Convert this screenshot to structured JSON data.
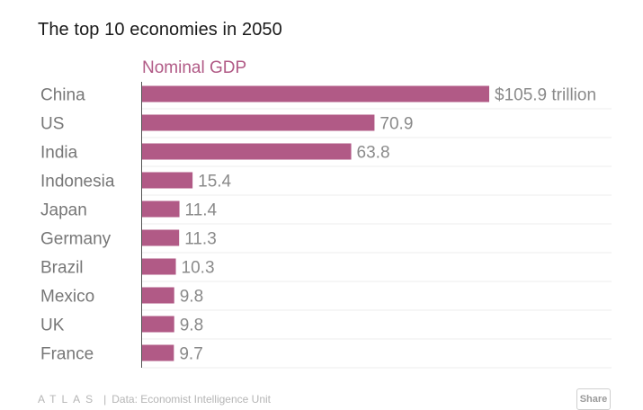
{
  "colors": {
    "bar": "#b15a86",
    "subtitle": "#b15a86",
    "grid": "#ececec",
    "axis": "#555555"
  },
  "chart_data": {
    "type": "bar",
    "orientation": "horizontal",
    "title": "The top 10 economies in 2050",
    "subtitle": "Nominal GDP",
    "categories": [
      "China",
      "US",
      "India",
      "Indonesia",
      "Japan",
      "Germany",
      "Brazil",
      "Mexico",
      "UK",
      "France"
    ],
    "values": [
      105.9,
      70.9,
      63.8,
      15.4,
      11.4,
      11.3,
      10.3,
      9.8,
      9.8,
      9.7
    ],
    "value_labels": [
      "$105.9 trillion",
      "70.9",
      "63.8",
      "15.4",
      "11.4",
      "11.3",
      "10.3",
      "9.8",
      "9.8",
      "9.7"
    ],
    "unit": "trillion USD",
    "xlim": [
      0,
      105.9
    ],
    "grid": true
  },
  "footer": {
    "logo": "ATLAS",
    "separator": "|",
    "source": "Data: Economist Intelligence Unit",
    "share_label": "Share"
  }
}
